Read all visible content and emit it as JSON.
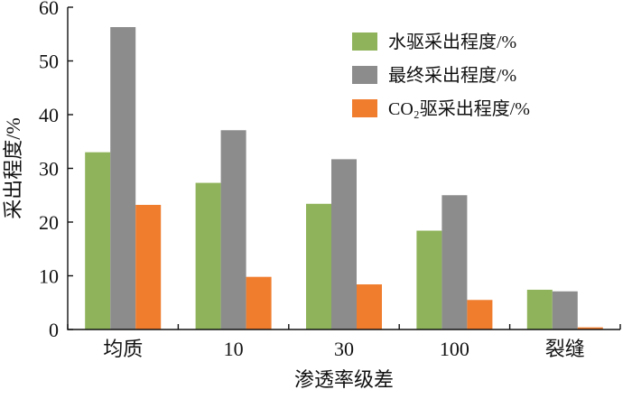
{
  "chart_data": {
    "type": "bar",
    "categories": [
      "均质",
      "10",
      "30",
      "100",
      "裂缝"
    ],
    "series": [
      {
        "name": "水驱采出程度/%",
        "color": "#8FB35A",
        "values": [
          33.0,
          27.3,
          23.4,
          18.4,
          7.4
        ]
      },
      {
        "name": "最终采出程度/%",
        "color": "#8C8C8C",
        "values": [
          56.3,
          37.1,
          31.7,
          25.0,
          7.1
        ]
      },
      {
        "name": "CO₂驱采出程度/%",
        "color": "#F07D2E",
        "values": [
          23.2,
          9.8,
          8.4,
          5.5,
          0.4
        ]
      }
    ],
    "xlabel": "渗透率级差",
    "ylabel": "采出程度/%",
    "ylim": [
      0,
      60
    ],
    "yticks": [
      0,
      10,
      20,
      30,
      40,
      50,
      60
    ],
    "grid": false,
    "legend_position": "top-right"
  }
}
